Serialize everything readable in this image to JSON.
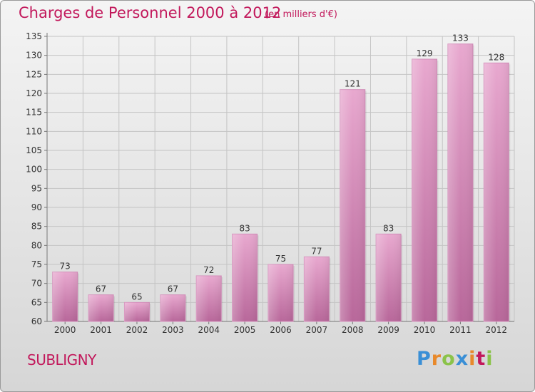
{
  "chart_data": {
    "type": "bar",
    "title": "Charges de Personnel 2000 à 2012",
    "subtitle": "(en milliers d'€)",
    "categories": [
      "2000",
      "2001",
      "2002",
      "2003",
      "2004",
      "2005",
      "2006",
      "2007",
      "2008",
      "2009",
      "2010",
      "2011",
      "2012"
    ],
    "values": [
      73,
      67,
      65,
      67,
      72,
      83,
      75,
      77,
      121,
      83,
      129,
      133,
      128
    ],
    "ylim": [
      60,
      135
    ],
    "yticks": [
      60,
      65,
      70,
      75,
      80,
      85,
      90,
      95,
      100,
      105,
      110,
      115,
      120,
      125,
      130,
      135
    ],
    "grid": true,
    "bar_color": "#d98ab8",
    "text_color": "#c2185b"
  },
  "commune": "SUBLIGNY",
  "brand": {
    "letters": [
      "P",
      "r",
      "o",
      "x",
      "i",
      "t",
      "i"
    ],
    "colors": [
      "#3a8fd6",
      "#e8892b",
      "#8bc34a",
      "#3a8fd6",
      "#e8892b",
      "#c2185b",
      "#8bc34a"
    ]
  }
}
